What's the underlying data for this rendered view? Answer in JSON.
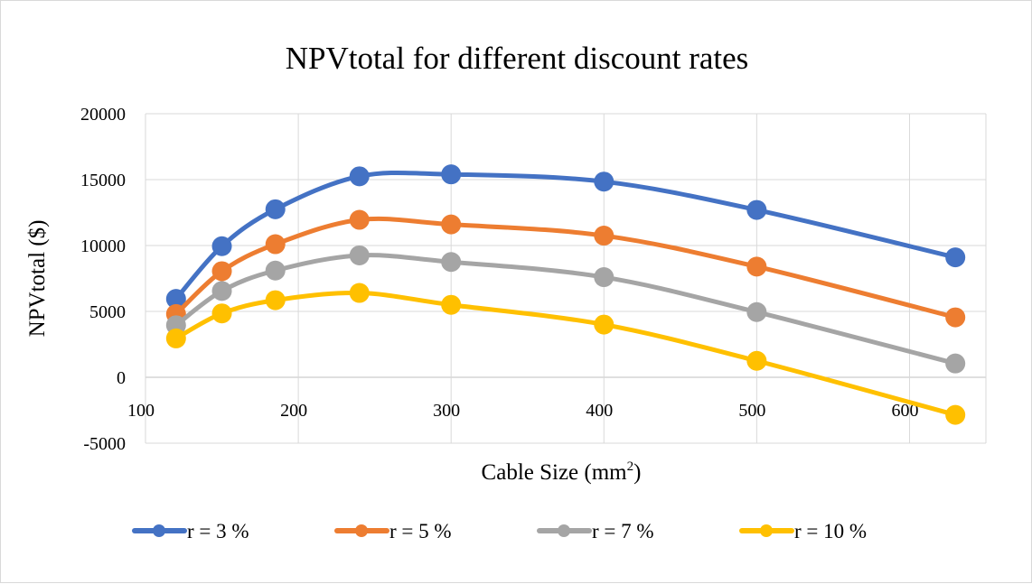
{
  "chart_data": {
    "type": "line",
    "title": "NPVtotal for different discount rates",
    "xlabel": "Cable Size (mm",
    "xlabel_sup": "2",
    "xlabel_end": ")",
    "ylabel": "NPVtotal ($)",
    "xlim": [
      100,
      650
    ],
    "ylim": [
      -5000,
      20000
    ],
    "xticks": [
      100,
      200,
      300,
      400,
      500,
      600
    ],
    "yticks": [
      -5000,
      0,
      5000,
      10000,
      15000,
      20000
    ],
    "grid": true,
    "smooth": true,
    "legend_position": "bottom",
    "x": [
      120,
      150,
      185,
      240,
      300,
      400,
      500,
      630
    ],
    "series": [
      {
        "name": "r = 3 %",
        "color": "#4472C4",
        "values": [
          5950,
          9950,
          12750,
          15250,
          15400,
          14850,
          12700,
          9100
        ]
      },
      {
        "name": "r = 5 %",
        "color": "#ED7D31",
        "values": [
          4800,
          8050,
          10100,
          11950,
          11600,
          10750,
          8400,
          4550
        ]
      },
      {
        "name": "r = 7 %",
        "color": "#A5A5A5",
        "values": [
          3950,
          6550,
          8100,
          9250,
          8750,
          7600,
          4950,
          1050
        ]
      },
      {
        "name": "r = 10 %",
        "color": "#FFC000",
        "values": [
          2950,
          4850,
          5850,
          6400,
          5500,
          4000,
          1250,
          -2850
        ]
      }
    ]
  }
}
